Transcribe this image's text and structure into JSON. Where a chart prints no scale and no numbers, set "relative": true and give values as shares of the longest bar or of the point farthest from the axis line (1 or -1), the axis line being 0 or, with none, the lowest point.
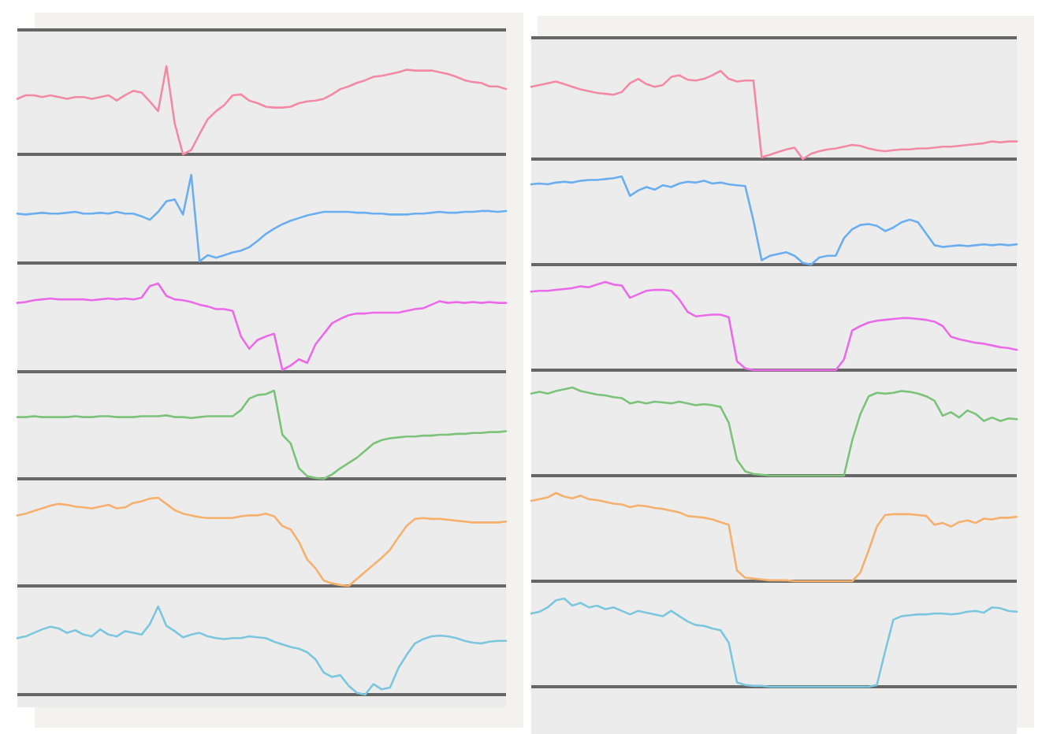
{
  "chart_data": [
    {
      "type": "line",
      "relative": true,
      "categories": [
        null,
        null,
        null,
        null,
        null,
        null,
        null,
        null,
        null,
        null,
        null,
        null,
        null,
        null,
        null,
        null,
        null,
        null,
        null,
        null,
        null,
        null,
        null,
        null,
        null,
        null,
        null,
        null,
        null,
        null,
        null,
        null,
        null,
        null,
        null,
        null,
        null,
        null,
        null,
        null,
        null,
        null,
        null,
        null,
        null,
        null,
        null,
        null,
        null,
        null,
        null,
        null,
        null,
        null,
        null,
        null,
        null,
        null,
        null,
        null
      ],
      "series": [
        {
          "color": "#f28aa6",
          "values": [
            0.63,
            0.67,
            0.67,
            0.65,
            0.67,
            0.65,
            0.63,
            0.65,
            0.65,
            0.63,
            0.65,
            0.67,
            0.61,
            0.67,
            0.72,
            0.7,
            0.6,
            0.49,
            1.0,
            0.35,
            0,
            0.05,
            0.23,
            0.4,
            0.49,
            0.56,
            0.67,
            0.68,
            0.61,
            0.58,
            0.54,
            0.53,
            0.53,
            0.54,
            0.58,
            0.6,
            0.61,
            0.63,
            0.68,
            0.74,
            0.77,
            0.81,
            0.84,
            0.88,
            0.89,
            0.91,
            0.93,
            0.96,
            0.95,
            0.95,
            0.95,
            0.93,
            0.91,
            0.88,
            0.84,
            0.82,
            0.81,
            0.77,
            0.77,
            0.74
          ]
        }
      ]
    },
    {
      "type": "line",
      "relative": true,
      "categories": [
        null,
        null,
        null,
        null,
        null,
        null,
        null,
        null,
        null,
        null,
        null,
        null,
        null,
        null,
        null,
        null,
        null,
        null,
        null,
        null,
        null,
        null,
        null,
        null,
        null,
        null,
        null,
        null,
        null,
        null,
        null,
        null,
        null,
        null,
        null,
        null,
        null,
        null,
        null,
        null,
        null,
        null,
        null,
        null,
        null,
        null,
        null,
        null,
        null,
        null,
        null,
        null,
        null,
        null,
        null,
        null,
        null,
        null,
        null,
        null
      ],
      "series": [
        {
          "color": "#6aaef0",
          "values": [
            0.56,
            0.55,
            0.56,
            0.57,
            0.56,
            0.56,
            0.57,
            0.58,
            0.56,
            0.56,
            0.57,
            0.56,
            0.58,
            0.56,
            0.56,
            0.53,
            0.49,
            0.58,
            0.7,
            0.72,
            0.55,
            1.0,
            0.02,
            0.09,
            0.06,
            0.09,
            0.12,
            0.14,
            0.18,
            0.25,
            0.33,
            0.39,
            0.44,
            0.48,
            0.51,
            0.54,
            0.56,
            0.58,
            0.58,
            0.58,
            0.58,
            0.57,
            0.57,
            0.56,
            0.56,
            0.55,
            0.55,
            0.55,
            0.56,
            0.56,
            0.57,
            0.58,
            0.57,
            0.57,
            0.58,
            0.58,
            0.59,
            0.59,
            0.58,
            0.59
          ]
        }
      ]
    },
    {
      "type": "line",
      "relative": true,
      "categories": [
        null,
        null,
        null,
        null,
        null,
        null,
        null,
        null,
        null,
        null,
        null,
        null,
        null,
        null,
        null,
        null,
        null,
        null,
        null,
        null,
        null,
        null,
        null,
        null,
        null,
        null,
        null,
        null,
        null,
        null,
        null,
        null,
        null,
        null,
        null,
        null,
        null,
        null,
        null,
        null,
        null,
        null,
        null,
        null,
        null,
        null,
        null,
        null,
        null,
        null,
        null,
        null,
        null,
        null,
        null,
        null,
        null,
        null,
        null,
        null
      ],
      "series": [
        {
          "color": "#ea6ae8",
          "values": [
            0.78,
            0.79,
            0.81,
            0.82,
            0.83,
            0.82,
            0.82,
            0.82,
            0.82,
            0.81,
            0.82,
            0.83,
            0.82,
            0.83,
            0.82,
            0.84,
            0.97,
            1.0,
            0.86,
            0.82,
            0.81,
            0.79,
            0.76,
            0.74,
            0.71,
            0.71,
            0.69,
            0.4,
            0.26,
            0.36,
            0.4,
            0.43,
            0.02,
            0.07,
            0.14,
            0.1,
            0.31,
            0.43,
            0.55,
            0.6,
            0.64,
            0.66,
            0.66,
            0.67,
            0.67,
            0.67,
            0.67,
            0.69,
            0.71,
            0.72,
            0.76,
            0.8,
            0.78,
            0.79,
            0.78,
            0.79,
            0.78,
            0.79,
            0.78,
            0.78
          ]
        }
      ]
    },
    {
      "type": "line",
      "relative": true,
      "categories": [
        null,
        null,
        null,
        null,
        null,
        null,
        null,
        null,
        null,
        null,
        null,
        null,
        null,
        null,
        null,
        null,
        null,
        null,
        null,
        null,
        null,
        null,
        null,
        null,
        null,
        null,
        null,
        null,
        null,
        null,
        null,
        null,
        null,
        null,
        null,
        null,
        null,
        null,
        null,
        null,
        null,
        null,
        null,
        null,
        null,
        null,
        null,
        null,
        null,
        null,
        null,
        null,
        null,
        null,
        null,
        null,
        null,
        null,
        null,
        null
      ],
      "series": [
        {
          "color": "#7cc27a",
          "values": [
            0.7,
            0.7,
            0.71,
            0.7,
            0.7,
            0.7,
            0.7,
            0.71,
            0.7,
            0.7,
            0.71,
            0.71,
            0.7,
            0.7,
            0.7,
            0.71,
            0.71,
            0.71,
            0.72,
            0.7,
            0.7,
            0.69,
            0.7,
            0.71,
            0.71,
            0.71,
            0.71,
            0.78,
            0.91,
            0.95,
            0.96,
            1.0,
            0.5,
            0.4,
            0.12,
            0.03,
            0.01,
            0,
            0.05,
            0.12,
            0.18,
            0.24,
            0.32,
            0.4,
            0.44,
            0.46,
            0.47,
            0.48,
            0.48,
            0.49,
            0.49,
            0.5,
            0.5,
            0.51,
            0.51,
            0.52,
            0.52,
            0.53,
            0.53,
            0.54
          ]
        }
      ]
    },
    {
      "type": "line",
      "relative": true,
      "categories": [
        null,
        null,
        null,
        null,
        null,
        null,
        null,
        null,
        null,
        null,
        null,
        null,
        null,
        null,
        null,
        null,
        null,
        null,
        null,
        null,
        null,
        null,
        null,
        null,
        null,
        null,
        null,
        null,
        null,
        null,
        null,
        null,
        null,
        null,
        null,
        null,
        null,
        null,
        null,
        null,
        null,
        null,
        null,
        null,
        null,
        null,
        null,
        null,
        null,
        null,
        null,
        null,
        null,
        null,
        null,
        null,
        null,
        null,
        null,
        null
      ],
      "series": [
        {
          "color": "#f6b06e",
          "values": [
            0.8,
            0.82,
            0.85,
            0.88,
            0.91,
            0.93,
            0.92,
            0.9,
            0.89,
            0.88,
            0.9,
            0.92,
            0.88,
            0.89,
            0.94,
            0.96,
            0.99,
            1.0,
            0.93,
            0.86,
            0.82,
            0.8,
            0.78,
            0.77,
            0.77,
            0.77,
            0.77,
            0.79,
            0.8,
            0.8,
            0.82,
            0.79,
            0.68,
            0.64,
            0.5,
            0.3,
            0.2,
            0.06,
            0.03,
            0.01,
            0,
            0.08,
            0.16,
            0.24,
            0.32,
            0.41,
            0.55,
            0.68,
            0.76,
            0.77,
            0.76,
            0.76,
            0.75,
            0.74,
            0.73,
            0.72,
            0.72,
            0.72,
            0.72,
            0.73
          ]
        }
      ]
    },
    {
      "type": "line",
      "relative": true,
      "categories": [
        null,
        null,
        null,
        null,
        null,
        null,
        null,
        null,
        null,
        null,
        null,
        null,
        null,
        null,
        null,
        null,
        null,
        null,
        null,
        null,
        null,
        null,
        null,
        null,
        null,
        null,
        null,
        null,
        null,
        null,
        null,
        null,
        null,
        null,
        null,
        null,
        null,
        null,
        null,
        null,
        null,
        null,
        null,
        null,
        null,
        null,
        null,
        null,
        null,
        null,
        null,
        null,
        null,
        null,
        null,
        null,
        null,
        null,
        null,
        null
      ],
      "series": [
        {
          "color": "#7cc6de",
          "values": [
            0.64,
            0.66,
            0.7,
            0.74,
            0.77,
            0.75,
            0.7,
            0.73,
            0.68,
            0.66,
            0.74,
            0.68,
            0.66,
            0.72,
            0.7,
            0.68,
            0.8,
            1.0,
            0.78,
            0.72,
            0.65,
            0.68,
            0.7,
            0.66,
            0.64,
            0.63,
            0.64,
            0.64,
            0.66,
            0.65,
            0.64,
            0.6,
            0.57,
            0.54,
            0.52,
            0.48,
            0.4,
            0.25,
            0.2,
            0.22,
            0.1,
            0.02,
            0,
            0.12,
            0.06,
            0.08,
            0.3,
            0.45,
            0.58,
            0.63,
            0.66,
            0.67,
            0.66,
            0.64,
            0.61,
            0.59,
            0.58,
            0.6,
            0.61,
            0.61
          ]
        }
      ]
    },
    {
      "type": "line",
      "relative": true,
      "categories": [
        null,
        null,
        null,
        null,
        null,
        null,
        null,
        null,
        null,
        null,
        null,
        null,
        null,
        null,
        null,
        null,
        null,
        null,
        null,
        null,
        null,
        null,
        null,
        null,
        null,
        null,
        null,
        null,
        null,
        null,
        null,
        null,
        null,
        null,
        null,
        null,
        null,
        null,
        null,
        null,
        null,
        null,
        null,
        null,
        null,
        null,
        null,
        null,
        null,
        null,
        null,
        null,
        null,
        null,
        null,
        null,
        null,
        null,
        null,
        null
      ],
      "series": [
        {
          "color": "#f28aa6",
          "values": [
            0.82,
            0.84,
            0.86,
            0.88,
            0.85,
            0.82,
            0.79,
            0.77,
            0.75,
            0.74,
            0.73,
            0.76,
            0.86,
            0.91,
            0.85,
            0.82,
            0.84,
            0.93,
            0.95,
            0.9,
            0.89,
            0.91,
            0.95,
            1.0,
            0.91,
            0.88,
            0.89,
            0.89,
            0.02,
            0.05,
            0.08,
            0.11,
            0.13,
            0,
            0.06,
            0.09,
            0.11,
            0.12,
            0.14,
            0.16,
            0.15,
            0.12,
            0.1,
            0.09,
            0.1,
            0.11,
            0.11,
            0.12,
            0.12,
            0.13,
            0.14,
            0.14,
            0.15,
            0.16,
            0.17,
            0.18,
            0.2,
            0.19,
            0.2,
            0.2
          ]
        }
      ]
    },
    {
      "type": "line",
      "relative": true,
      "categories": [
        null,
        null,
        null,
        null,
        null,
        null,
        null,
        null,
        null,
        null,
        null,
        null,
        null,
        null,
        null,
        null,
        null,
        null,
        null,
        null,
        null,
        null,
        null,
        null,
        null,
        null,
        null,
        null,
        null,
        null,
        null,
        null,
        null,
        null,
        null,
        null,
        null,
        null,
        null,
        null,
        null,
        null,
        null,
        null,
        null,
        null,
        null,
        null,
        null,
        null,
        null,
        null,
        null,
        null,
        null,
        null,
        null,
        null,
        null,
        null
      ],
      "series": [
        {
          "color": "#6aaef0",
          "values": [
            0.91,
            0.92,
            0.91,
            0.93,
            0.94,
            0.93,
            0.95,
            0.96,
            0.96,
            0.97,
            0.98,
            1.0,
            0.78,
            0.84,
            0.88,
            0.85,
            0.9,
            0.88,
            0.92,
            0.94,
            0.93,
            0.95,
            0.92,
            0.93,
            0.91,
            0.9,
            0.89,
            0.5,
            0.05,
            0.1,
            0.12,
            0.14,
            0.1,
            0.02,
            0,
            0.08,
            0.1,
            0.1,
            0.3,
            0.4,
            0.45,
            0.46,
            0.44,
            0.38,
            0.42,
            0.48,
            0.51,
            0.48,
            0.35,
            0.22,
            0.2,
            0.21,
            0.22,
            0.21,
            0.22,
            0.23,
            0.22,
            0.23,
            0.22,
            0.23
          ]
        }
      ]
    },
    {
      "type": "line",
      "relative": true,
      "categories": [
        null,
        null,
        null,
        null,
        null,
        null,
        null,
        null,
        null,
        null,
        null,
        null,
        null,
        null,
        null,
        null,
        null,
        null,
        null,
        null,
        null,
        null,
        null,
        null,
        null,
        null,
        null,
        null,
        null,
        null,
        null,
        null,
        null,
        null,
        null,
        null,
        null,
        null,
        null,
        null,
        null,
        null,
        null,
        null,
        null,
        null,
        null,
        null,
        null,
        null,
        null,
        null,
        null,
        null,
        null,
        null,
        null,
        null,
        null,
        null
      ],
      "series": [
        {
          "color": "#ea6ae8",
          "values": [
            0.89,
            0.9,
            0.9,
            0.91,
            0.92,
            0.93,
            0.95,
            0.94,
            0.97,
            1.0,
            0.97,
            0.96,
            0.82,
            0.86,
            0.9,
            0.91,
            0.91,
            0.9,
            0.8,
            0.66,
            0.61,
            0.62,
            0.63,
            0.63,
            0.6,
            0.1,
            0.02,
            0,
            0,
            0,
            0,
            0,
            0,
            0,
            0,
            0,
            0,
            0,
            0.12,
            0.45,
            0.5,
            0.54,
            0.56,
            0.57,
            0.58,
            0.59,
            0.59,
            0.58,
            0.57,
            0.55,
            0.5,
            0.38,
            0.35,
            0.33,
            0.31,
            0.3,
            0.28,
            0.26,
            0.25,
            0.23
          ]
        }
      ]
    },
    {
      "type": "line",
      "relative": true,
      "categories": [
        null,
        null,
        null,
        null,
        null,
        null,
        null,
        null,
        null,
        null,
        null,
        null,
        null,
        null,
        null,
        null,
        null,
        null,
        null,
        null,
        null,
        null,
        null,
        null,
        null,
        null,
        null,
        null,
        null,
        null,
        null,
        null,
        null,
        null,
        null,
        null,
        null,
        null,
        null,
        null,
        null,
        null,
        null,
        null,
        null,
        null,
        null,
        null,
        null,
        null,
        null,
        null,
        null,
        null,
        null,
        null,
        null,
        null,
        null,
        null
      ],
      "series": [
        {
          "color": "#7cc27a",
          "values": [
            0.93,
            0.95,
            0.93,
            0.96,
            0.98,
            1.0,
            0.96,
            0.94,
            0.92,
            0.91,
            0.89,
            0.88,
            0.82,
            0.84,
            0.82,
            0.84,
            0.83,
            0.82,
            0.84,
            0.82,
            0.8,
            0.81,
            0.8,
            0.78,
            0.6,
            0.18,
            0.05,
            0.02,
            0.01,
            0,
            0,
            0,
            0,
            0,
            0,
            0,
            0,
            0,
            0,
            0.4,
            0.7,
            0.9,
            0.94,
            0.93,
            0.94,
            0.96,
            0.95,
            0.93,
            0.9,
            0.85,
            0.68,
            0.72,
            0.66,
            0.74,
            0.7,
            0.62,
            0.66,
            0.62,
            0.65,
            0.64
          ]
        }
      ]
    },
    {
      "type": "line",
      "relative": true,
      "categories": [
        null,
        null,
        null,
        null,
        null,
        null,
        null,
        null,
        null,
        null,
        null,
        null,
        null,
        null,
        null,
        null,
        null,
        null,
        null,
        null,
        null,
        null,
        null,
        null,
        null,
        null,
        null,
        null,
        null,
        null,
        null,
        null,
        null,
        null,
        null,
        null,
        null,
        null,
        null,
        null,
        null,
        null,
        null,
        null,
        null,
        null,
        null,
        null,
        null,
        null,
        null,
        null,
        null,
        null,
        null,
        null,
        null,
        null,
        null,
        null
      ],
      "series": [
        {
          "color": "#f6b06e",
          "values": [
            0.91,
            0.93,
            0.95,
            1.0,
            0.96,
            0.94,
            0.97,
            0.93,
            0.92,
            0.9,
            0.88,
            0.87,
            0.84,
            0.86,
            0.85,
            0.83,
            0.82,
            0.8,
            0.78,
            0.74,
            0.73,
            0.72,
            0.7,
            0.67,
            0.64,
            0.12,
            0.04,
            0.03,
            0.02,
            0.01,
            0.01,
            0.01,
            0,
            0,
            0,
            0,
            0,
            0,
            0,
            0,
            0.1,
            0.35,
            0.62,
            0.75,
            0.76,
            0.76,
            0.76,
            0.75,
            0.74,
            0.64,
            0.66,
            0.62,
            0.67,
            0.69,
            0.66,
            0.71,
            0.7,
            0.72,
            0.72,
            0.73
          ]
        }
      ]
    },
    {
      "type": "line",
      "relative": true,
      "categories": [
        null,
        null,
        null,
        null,
        null,
        null,
        null,
        null,
        null,
        null,
        null,
        null,
        null,
        null,
        null,
        null,
        null,
        null,
        null,
        null,
        null,
        null,
        null,
        null,
        null,
        null,
        null,
        null,
        null,
        null,
        null,
        null,
        null,
        null,
        null,
        null,
        null,
        null,
        null,
        null,
        null,
        null,
        null,
        null,
        null,
        null,
        null,
        null,
        null,
        null,
        null,
        null,
        null,
        null,
        null,
        null,
        null,
        null,
        null,
        null
      ],
      "series": [
        {
          "color": "#7cc6de",
          "values": [
            0.83,
            0.85,
            0.9,
            0.98,
            1.0,
            0.92,
            0.95,
            0.9,
            0.92,
            0.88,
            0.9,
            0.86,
            0.82,
            0.86,
            0.84,
            0.82,
            0.8,
            0.86,
            0.8,
            0.74,
            0.7,
            0.69,
            0.66,
            0.64,
            0.5,
            0.05,
            0.02,
            0.01,
            0.01,
            0,
            0,
            0,
            0,
            0,
            0,
            0,
            0,
            0,
            0,
            0,
            0,
            0,
            0.02,
            0.4,
            0.76,
            0.8,
            0.81,
            0.82,
            0.82,
            0.83,
            0.83,
            0.82,
            0.83,
            0.85,
            0.86,
            0.84,
            0.9,
            0.89,
            0.86,
            0.85
          ]
        }
      ]
    }
  ]
}
